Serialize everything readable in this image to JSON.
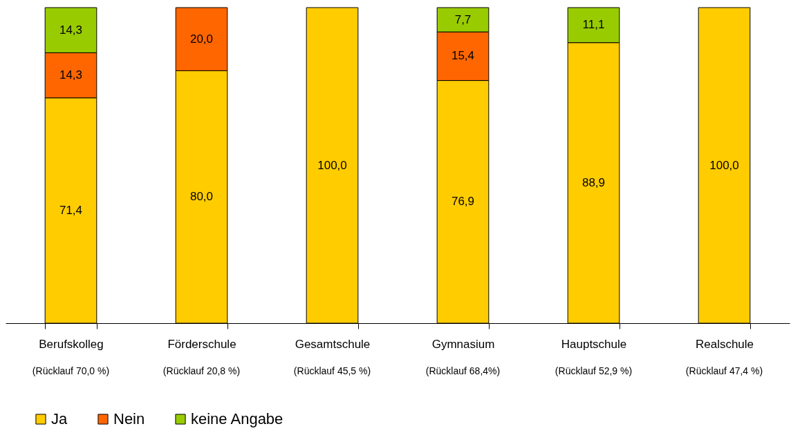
{
  "chart_data": {
    "type": "bar",
    "stacked": true,
    "categories": [
      "Berufskolleg",
      "Förderschule",
      "Gesamtschule",
      "Gymnasium",
      "Hauptschule",
      "Realschule"
    ],
    "series": [
      {
        "name": "Ja",
        "color": "#ffcc00",
        "values": [
          71.4,
          80.0,
          100.0,
          76.9,
          88.9,
          100.0
        ],
        "value_labels": [
          "71,4",
          "80,0",
          "100,0",
          "76,9",
          "88,9",
          "100,0"
        ]
      },
      {
        "name": "Nein",
        "color": "#ff6600",
        "values": [
          14.3,
          20.0,
          null,
          15.4,
          null,
          null
        ],
        "value_labels": [
          "14,3",
          "20,0",
          null,
          "15,4",
          null,
          null
        ]
      },
      {
        "name": "keine Angabe",
        "color": "#99cc00",
        "values": [
          14.3,
          null,
          null,
          7.7,
          11.1,
          null
        ],
        "value_labels": [
          "14,3",
          null,
          null,
          "7,7",
          "11,1",
          null
        ]
      }
    ],
    "annotations": [
      "(Rücklauf 70,0 %)",
      "(Rücklauf 20,8 %)",
      "(Rücklauf 45,5 %)",
      "(Rücklauf 68,4%)",
      "(Rücklauf 52,9 %)",
      "(Rücklauf 47,4 %)"
    ],
    "tick_labels": "x",
    "legend": "bottom left"
  }
}
